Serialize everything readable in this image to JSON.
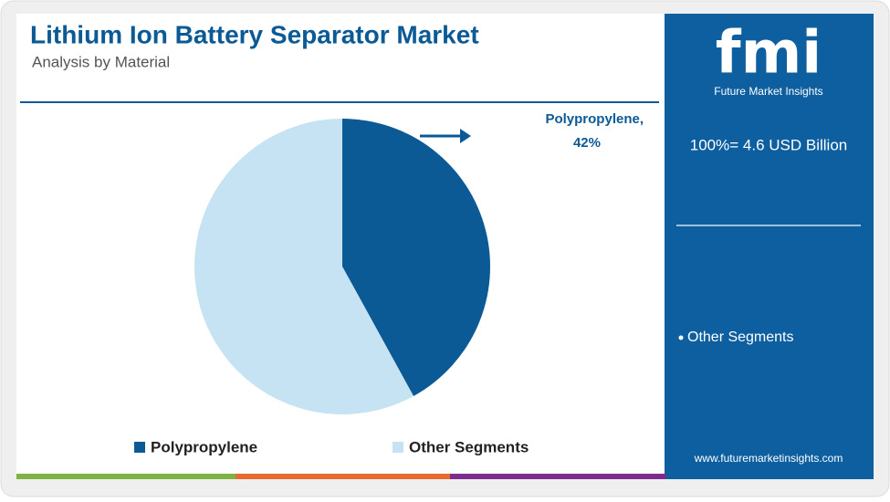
{
  "chart_data": {
    "type": "pie",
    "title": "Lithium Ion Battery Separator Market",
    "subtitle": "Analysis by Material",
    "categories": [
      "Polypropylene",
      "Other Segments"
    ],
    "values": [
      42,
      58
    ],
    "value_labels": [
      "42%",
      null
    ],
    "colors": [
      "#0b5a96",
      "#c6e3f3"
    ]
  },
  "summary": "100%= 4.6 USD Billion",
  "brand": {
    "logo": "fmi",
    "name": "Future Market Insights",
    "url": "www.futuremarketinsights.com"
  }
}
